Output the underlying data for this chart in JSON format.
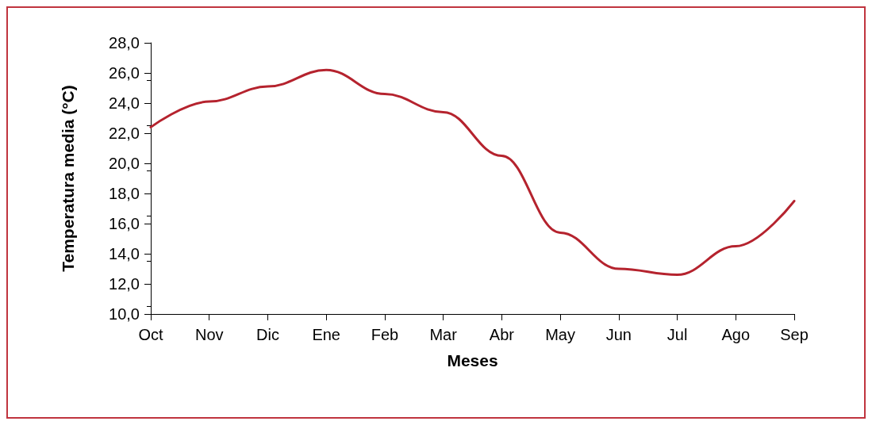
{
  "chart_data": {
    "type": "line",
    "xlabel": "Meses",
    "ylabel": "Temperatura media (°C)",
    "categories": [
      "Oct",
      "Nov",
      "Dic",
      "Ene",
      "Feb",
      "Mar",
      "Abr",
      "May",
      "Jun",
      "Jul",
      "Ago",
      "Sep"
    ],
    "series": [
      {
        "color": "#b5232e",
        "values": [
          22.4,
          24.1,
          25.1,
          26.2,
          24.6,
          23.4,
          20.5,
          15.4,
          13.0,
          12.6,
          14.5,
          17.5
        ]
      }
    ],
    "ylim": [
      10,
      28
    ],
    "yticks": [
      {
        "value": 10,
        "label": "10,0"
      },
      {
        "value": 12,
        "label": "12,0"
      },
      {
        "value": 14,
        "label": "14,0"
      },
      {
        "value": 16,
        "label": "16,0"
      },
      {
        "value": 18,
        "label": "18,0"
      },
      {
        "value": 20,
        "label": "20,0"
      },
      {
        "value": 22,
        "label": "22,0"
      },
      {
        "value": 24,
        "label": "24,0"
      },
      {
        "value": 26,
        "label": "26,0"
      },
      {
        "value": 28,
        "label": "28,0"
      }
    ],
    "grid": false,
    "marker": "none",
    "line_style": "solid"
  }
}
